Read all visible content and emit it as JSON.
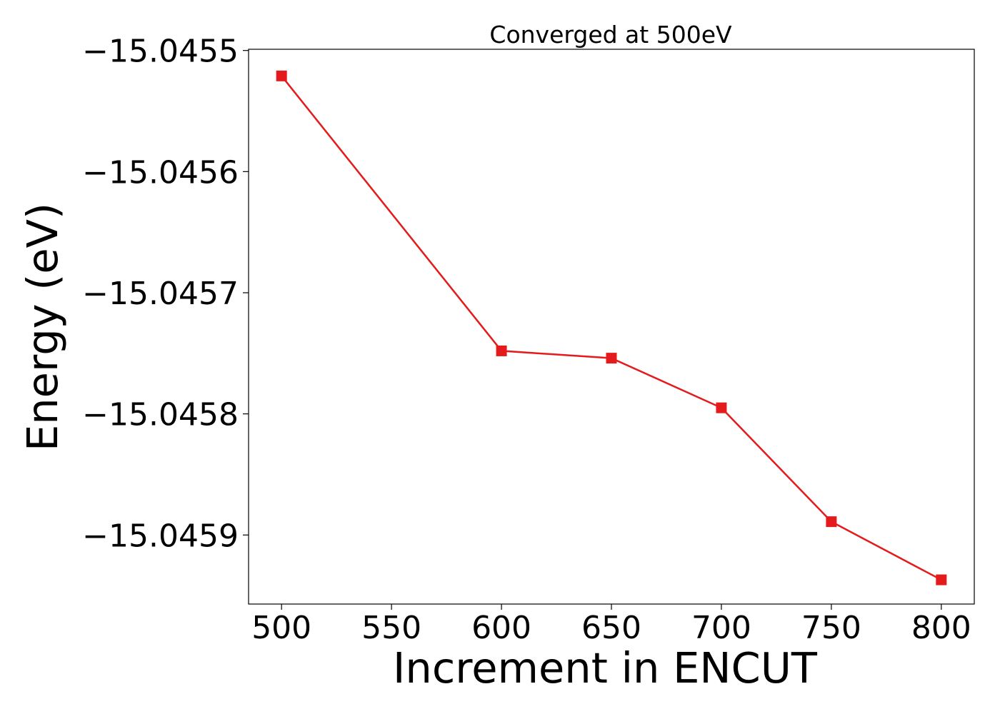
{
  "chart_data": {
    "type": "line",
    "title": "Converged at 500eV",
    "xlabel": "Increment in ENCUT",
    "ylabel": "Energy (eV)",
    "x": [
      500,
      600,
      650,
      700,
      750,
      800
    ],
    "series": [
      {
        "values": [
          -15.045521,
          -15.045748,
          -15.045754,
          -15.045795,
          -15.045889,
          -15.045937
        ],
        "color": "#e41a1c",
        "marker": "square"
      }
    ],
    "xticks": [
      500,
      550,
      600,
      650,
      700,
      750,
      800
    ],
    "xtick_labels": [
      "500",
      "550",
      "600",
      "650",
      "700",
      "750",
      "800"
    ],
    "yticks": [
      -15.0455,
      -15.0456,
      -15.0457,
      -15.0458,
      -15.0459
    ],
    "ytick_labels": [
      "−15.0455",
      "−15.0456",
      "−15.0457",
      "−15.0458",
      "−15.0459"
    ],
    "xlim": [
      485,
      815
    ],
    "ylim": [
      -15.045957,
      -15.045499
    ],
    "grid": false,
    "legend": "none"
  }
}
